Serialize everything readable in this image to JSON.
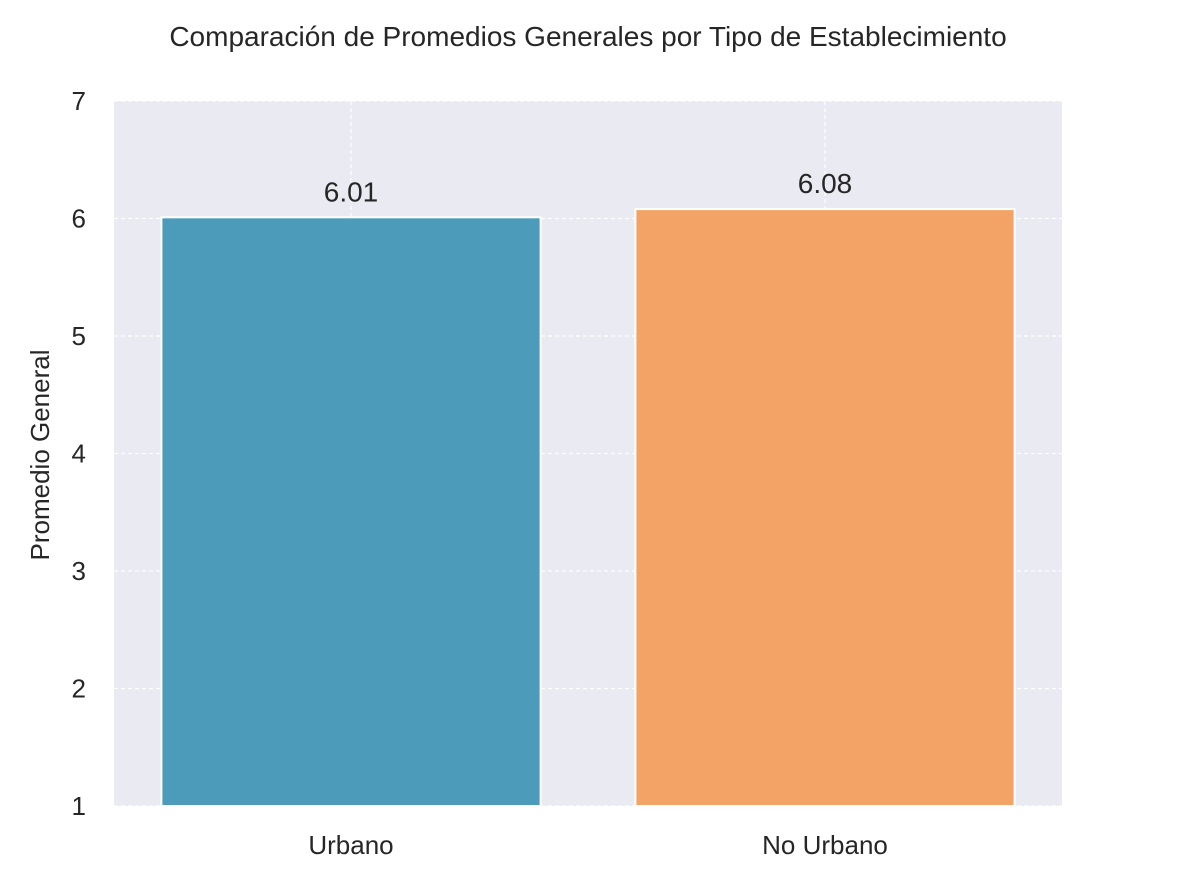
{
  "chart_data": {
    "type": "bar",
    "title": "Comparación de Promedios Generales por Tipo de Establecimiento",
    "xlabel": "",
    "ylabel": "Promedio General",
    "categories": [
      "Urbano",
      "No Urbano"
    ],
    "values": [
      6.01,
      6.08
    ],
    "value_labels": [
      "6.01",
      "6.08"
    ],
    "bar_colors": [
      "#4c9bba",
      "#f2a365"
    ],
    "ylim": [
      1,
      7
    ],
    "yticks": [
      "1",
      "2",
      "3",
      "4",
      "5",
      "6",
      "7"
    ],
    "grid": true,
    "grid_style": "dashed",
    "plot_background": "#eaeaf2"
  }
}
